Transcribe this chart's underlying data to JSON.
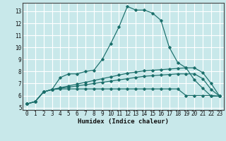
{
  "xlabel": "Humidex (Indice chaleur)",
  "xlim": [
    -0.5,
    23.5
  ],
  "ylim": [
    4.8,
    13.7
  ],
  "yticks": [
    5,
    6,
    7,
    8,
    9,
    10,
    11,
    12,
    13
  ],
  "xticks": [
    0,
    1,
    2,
    3,
    4,
    5,
    6,
    7,
    8,
    9,
    10,
    11,
    12,
    13,
    14,
    15,
    16,
    17,
    18,
    19,
    20,
    21,
    22,
    23
  ],
  "bg_color": "#c8e8ea",
  "grid_color": "#ffffff",
  "line_color": "#1a6e6a",
  "series": [
    {
      "x": [
        0,
        1,
        2,
        3,
        4,
        5,
        6,
        7,
        8,
        9,
        10,
        11,
        12,
        13,
        14,
        15,
        16,
        17,
        18,
        19,
        20,
        21,
        22,
        23
      ],
      "y": [
        5.3,
        5.5,
        6.3,
        6.5,
        7.5,
        7.8,
        7.8,
        8.0,
        8.1,
        9.0,
        10.3,
        11.7,
        13.4,
        13.1,
        13.1,
        12.85,
        12.25,
        10.0,
        8.75,
        8.3,
        7.3,
        6.6,
        5.95,
        5.95
      ]
    },
    {
      "x": [
        0,
        1,
        2,
        3,
        4,
        5,
        6,
        7,
        8,
        9,
        10,
        11,
        12,
        13,
        14,
        15,
        16,
        17,
        18,
        19,
        20,
        21,
        22,
        23
      ],
      "y": [
        5.3,
        5.5,
        6.3,
        6.5,
        6.55,
        6.55,
        6.55,
        6.55,
        6.55,
        6.55,
        6.55,
        6.55,
        6.55,
        6.55,
        6.55,
        6.55,
        6.55,
        6.55,
        6.55,
        6.0,
        6.0,
        6.0,
        6.0,
        5.95
      ]
    },
    {
      "x": [
        0,
        1,
        2,
        3,
        4,
        5,
        6,
        7,
        8,
        9,
        10,
        11,
        12,
        13,
        14,
        15,
        16,
        17,
        18,
        19,
        20,
        21,
        22,
        23
      ],
      "y": [
        5.3,
        5.5,
        6.3,
        6.5,
        6.6,
        6.7,
        6.8,
        6.9,
        7.0,
        7.1,
        7.2,
        7.3,
        7.4,
        7.5,
        7.6,
        7.65,
        7.7,
        7.75,
        7.8,
        7.8,
        7.8,
        7.4,
        6.5,
        5.95
      ]
    },
    {
      "x": [
        0,
        1,
        2,
        3,
        4,
        5,
        6,
        7,
        8,
        9,
        10,
        11,
        12,
        13,
        14,
        15,
        16,
        17,
        18,
        19,
        20,
        21,
        22,
        23
      ],
      "y": [
        5.3,
        5.5,
        6.3,
        6.5,
        6.65,
        6.8,
        6.95,
        7.1,
        7.25,
        7.4,
        7.55,
        7.7,
        7.85,
        7.95,
        8.05,
        8.1,
        8.15,
        8.2,
        8.25,
        8.3,
        8.3,
        7.9,
        7.0,
        5.95
      ]
    }
  ]
}
